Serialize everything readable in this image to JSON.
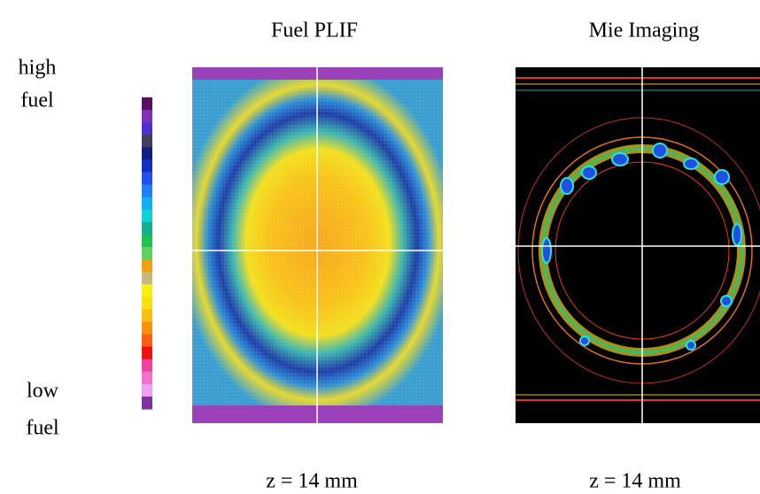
{
  "panels": [
    {
      "title": "Fuel PLIF",
      "caption": "z = 14 mm"
    },
    {
      "title": "Mie Imaging",
      "caption": "z = 14 mm"
    }
  ],
  "colorbar": {
    "top_label": [
      "high",
      "fuel"
    ],
    "bottom_label": [
      "low",
      "fuel"
    ]
  }
}
